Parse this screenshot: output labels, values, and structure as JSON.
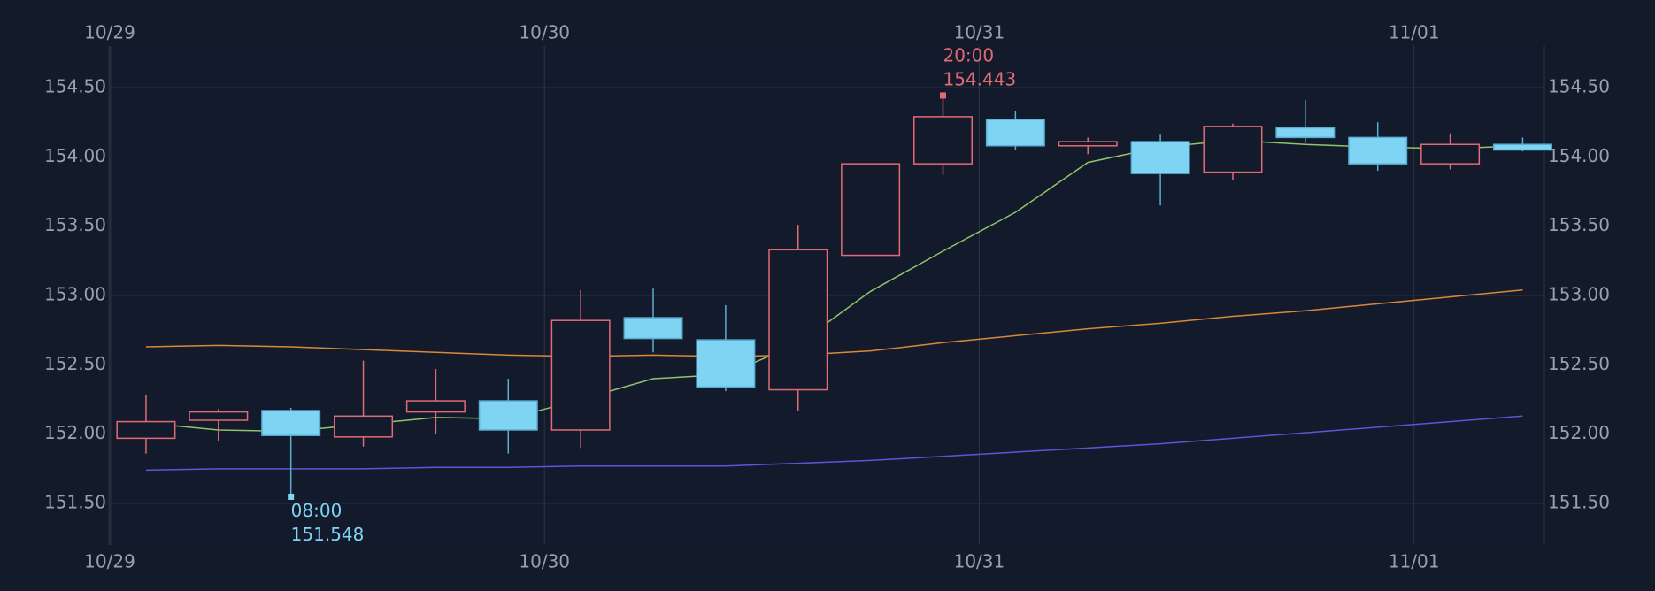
{
  "chart_data": {
    "type": "candlestick",
    "categories": [
      null,
      null,
      null,
      null,
      null,
      null,
      null,
      null,
      null,
      null,
      null,
      null,
      null,
      null,
      null,
      null,
      null,
      null,
      null,
      null
    ],
    "open": [
      151.97,
      152.1,
      152.17,
      151.98,
      152.16,
      152.24,
      152.03,
      152.84,
      152.68,
      152.32,
      153.29,
      153.95,
      154.27,
      154.08,
      154.11,
      153.89,
      154.21,
      154.14,
      153.95,
      154.09
    ],
    "high": [
      152.28,
      152.18,
      152.19,
      152.53,
      152.47,
      152.4,
      153.04,
      153.05,
      152.93,
      153.51,
      153.95,
      154.443,
      154.33,
      154.14,
      154.16,
      154.24,
      154.41,
      154.25,
      154.17,
      154.14
    ],
    "low": [
      151.86,
      151.95,
      151.548,
      151.91,
      152.0,
      151.86,
      151.9,
      152.59,
      152.31,
      152.17,
      153.29,
      153.87,
      154.05,
      154.02,
      153.65,
      153.83,
      154.1,
      153.9,
      153.91,
      154.04
    ],
    "close": [
      152.09,
      152.16,
      151.99,
      152.13,
      152.24,
      152.03,
      152.82,
      152.69,
      152.34,
      153.33,
      153.95,
      154.29,
      154.08,
      154.11,
      153.88,
      154.22,
      154.14,
      153.95,
      154.09,
      154.05
    ],
    "up_color": "#e06b75",
    "down_color": "#7fd3f3",
    "high_label": "20:00",
    "low_label": "08:00",
    "series": [
      {
        "color": "#8fc46a",
        "values": [
          152.08,
          152.03,
          152.02,
          152.07,
          152.12,
          152.11,
          152.25,
          152.4,
          152.43,
          152.65,
          153.03,
          153.32,
          153.6,
          153.96,
          154.07,
          154.12,
          154.09,
          154.07,
          154.06,
          154.08
        ]
      },
      {
        "color": "#d9883a",
        "values": [
          152.63,
          152.64,
          152.63,
          152.61,
          152.59,
          152.57,
          152.56,
          152.57,
          152.56,
          152.57,
          152.6,
          152.66,
          152.71,
          152.76,
          152.8,
          152.85,
          152.89,
          152.94,
          152.99,
          153.04
        ]
      },
      {
        "color": "#5b56d6",
        "values": [
          151.74,
          151.75,
          151.75,
          151.75,
          151.76,
          151.76,
          151.77,
          151.77,
          151.77,
          151.79,
          151.81,
          151.84,
          151.87,
          151.9,
          151.93,
          151.97,
          152.01,
          152.05,
          152.09,
          152.13
        ]
      }
    ],
    "xlim": [
      -0.5,
      19.3
    ],
    "xticks": [
      {
        "value": -0.5,
        "label": "10/29"
      },
      {
        "value": 5.5,
        "label": "10/30"
      },
      {
        "value": 11.5,
        "label": "10/31"
      },
      {
        "value": 17.5,
        "label": "11/01"
      }
    ],
    "ylim": [
      151.2,
      154.8
    ],
    "yticks": [
      {
        "value": 151.5,
        "label": "151.50"
      },
      {
        "value": 152,
        "label": "152.00"
      },
      {
        "value": 152.5,
        "label": "152.50"
      },
      {
        "value": 153,
        "label": "153.00"
      },
      {
        "value": 153.5,
        "label": "153.50"
      },
      {
        "value": 154,
        "label": "154.00"
      },
      {
        "value": 154.5,
        "label": "154.50"
      }
    ],
    "grid": true
  }
}
